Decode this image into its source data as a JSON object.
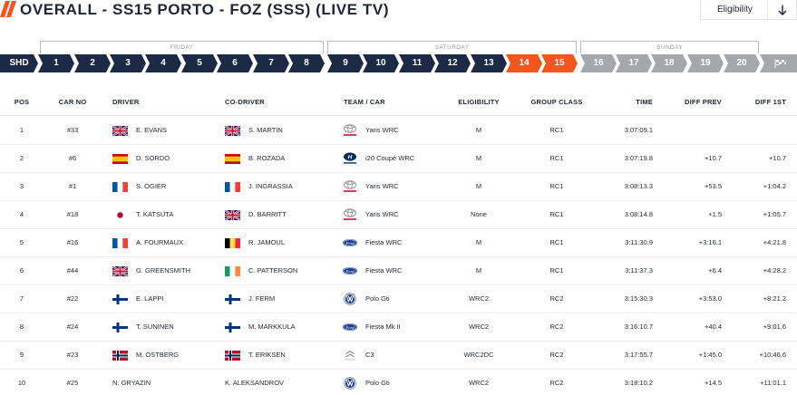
{
  "header": {
    "title": "OVERALL - SS15 PORTO - FOZ (SSS) (LIVE TV)",
    "eligibility_label": "Eligibility",
    "accent_color": "#f2561d",
    "navy_color": "#1d2a45"
  },
  "days": [
    "FRIDAY",
    "SATURDAY",
    "SUNDAY"
  ],
  "stages": {
    "shakedown": "SHD",
    "items": [
      "1",
      "2",
      "3",
      "4",
      "5",
      "6",
      "7",
      "8",
      "9",
      "10",
      "11",
      "12",
      "13",
      "14",
      "15",
      "16",
      "17",
      "18",
      "19",
      "20"
    ],
    "finish_icon": "finish-flag-icon"
  },
  "table": {
    "headers": {
      "pos": "POS",
      "car_no": "CAR NO",
      "driver": "DRIVER",
      "co_driver": "CO-DRIVER",
      "team_car": "TEAM / CAR",
      "eligibility": "ELIGIBILITY",
      "group_class": "GROUP CLASS",
      "time": "TIME",
      "diff_prev": "DIFF PREV",
      "diff_1st": "DIFF 1ST"
    },
    "rows": [
      {
        "pos": "1",
        "car_no": "#33",
        "driver": "E. EVANS",
        "driver_flag": "gb",
        "co_driver": "S. MARTIN",
        "co_flag": "gb",
        "brand": "toyota",
        "car": "Yaris WRC",
        "eligibility": "M",
        "group_class": "RC1",
        "time": "3:07:09.1",
        "diff_prev": "",
        "diff_1st": ""
      },
      {
        "pos": "2",
        "car_no": "#6",
        "driver": "D. SORDO",
        "driver_flag": "es",
        "co_driver": "B. ROZADA",
        "co_flag": "es",
        "brand": "hyundai",
        "car": "i20 Coupé WRC",
        "eligibility": "M",
        "group_class": "RC1",
        "time": "3:07:19.8",
        "diff_prev": "+10.7",
        "diff_1st": "+10.7"
      },
      {
        "pos": "3",
        "car_no": "#1",
        "driver": "S. OGIER",
        "driver_flag": "fr",
        "co_driver": "J. INGRASSIA",
        "co_flag": "fr",
        "brand": "toyota",
        "car": "Yaris WRC",
        "eligibility": "M",
        "group_class": "RC1",
        "time": "3:08:13.3",
        "diff_prev": "+53.5",
        "diff_1st": "+1:04.2"
      },
      {
        "pos": "4",
        "car_no": "#18",
        "driver": "T. KATSUTA",
        "driver_flag": "jp",
        "co_driver": "D. BARRITT",
        "co_flag": "gb",
        "brand": "toyota",
        "car": "Yaris WRC",
        "eligibility": "None",
        "group_class": "RC1",
        "time": "3:08:14.8",
        "diff_prev": "+1.5",
        "diff_1st": "+1:05.7"
      },
      {
        "pos": "5",
        "car_no": "#16",
        "driver": "A. FOURMAUX",
        "driver_flag": "fr",
        "co_driver": "R. JAMOUL",
        "co_flag": "be",
        "brand": "ford",
        "car": "Fiesta WRC",
        "eligibility": "M",
        "group_class": "RC1",
        "time": "3:11:30.9",
        "diff_prev": "+3:16.1",
        "diff_1st": "+4:21.8"
      },
      {
        "pos": "6",
        "car_no": "#44",
        "driver": "G. GREENSMITH",
        "driver_flag": "gb",
        "co_driver": "C. PATTERSON",
        "co_flag": "ie",
        "brand": "ford",
        "car": "Fiesta WRC",
        "eligibility": "M",
        "group_class": "RC1",
        "time": "3:11:37.3",
        "diff_prev": "+6.4",
        "diff_1st": "+4:28.2"
      },
      {
        "pos": "7",
        "car_no": "#22",
        "driver": "E. LAPPI",
        "driver_flag": "fi",
        "co_driver": "J. FERM",
        "co_flag": "fi",
        "brand": "vw",
        "car": "Polo Gti",
        "eligibility": "WRC2",
        "group_class": "RC2",
        "time": "3:15:30.3",
        "diff_prev": "+3:53.0",
        "diff_1st": "+8:21.2"
      },
      {
        "pos": "8",
        "car_no": "#24",
        "driver": "T. SUNINEN",
        "driver_flag": "fi",
        "co_driver": "M. MARKKULA",
        "co_flag": "fi",
        "brand": "ford",
        "car": "Fiesta Mk II",
        "eligibility": "WRC2",
        "group_class": "RC2",
        "time": "3:16:10.7",
        "diff_prev": "+40.4",
        "diff_1st": "+9:01.6"
      },
      {
        "pos": "9",
        "car_no": "#23",
        "driver": "M. OSTBERG",
        "driver_flag": "no",
        "co_driver": "T. ERIKSEN",
        "co_flag": "no",
        "brand": "citroen",
        "car": "C3",
        "eligibility": "WRC2DC",
        "group_class": "RC2",
        "time": "3:17:55.7",
        "diff_prev": "+1:45.0",
        "diff_1st": "+10:46.6"
      },
      {
        "pos": "10",
        "car_no": "#25",
        "driver": "N. GRYAZIN",
        "driver_flag": "none",
        "co_driver": "K. ALEKSANDROV",
        "co_flag": "none",
        "brand": "vw",
        "car": "Polo Gti",
        "eligibility": "WRC2",
        "group_class": "RC2",
        "time": "3:18:10.2",
        "diff_prev": "+14.5",
        "diff_1st": "+11:01.1"
      }
    ]
  }
}
